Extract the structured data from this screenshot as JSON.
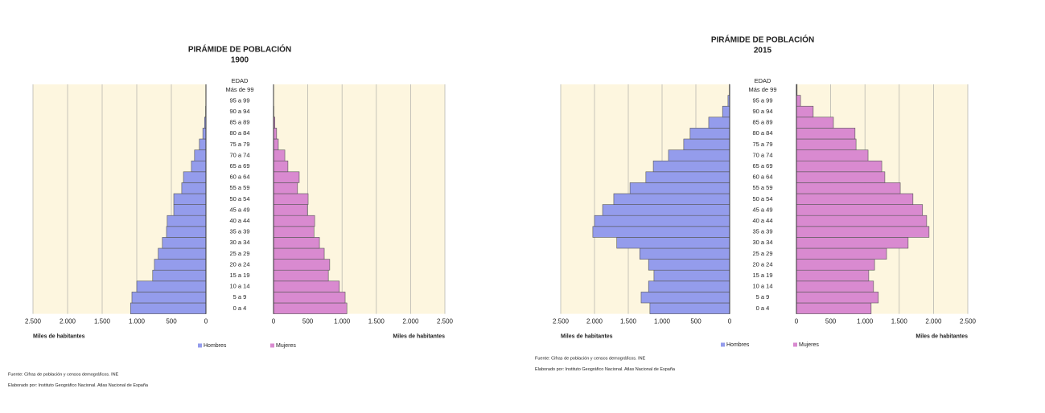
{
  "chart_data": [
    {
      "type": "pyramid",
      "title": "PIRÁMIDE DE POBLACIÓN",
      "subtitle": "1900",
      "age_label": "EDAD",
      "x_label": "Miles de habitantes",
      "categories": [
        "0 a 4",
        "5 a 9",
        "10 a 14",
        "15 a 19",
        "20 a 24",
        "25 a 29",
        "30 a 34",
        "35 a 39",
        "40 a 44",
        "45 a 49",
        "50 a 54",
        "55 a 59",
        "60 a 64",
        "65 a 69",
        "70 a 74",
        "75 a 79",
        "80 a 84",
        "85 a 89",
        "90 a 94",
        "95 a 99",
        "Más de 99"
      ],
      "series": [
        {
          "name": "Hombres",
          "color": "#949cec",
          "values": [
            1090,
            1070,
            1000,
            770,
            745,
            690,
            630,
            570,
            560,
            465,
            465,
            350,
            325,
            210,
            165,
            95,
            45,
            20,
            5,
            1,
            0
          ]
        },
        {
          "name": "Mujeres",
          "color": "#d98ad0",
          "values": [
            1070,
            1045,
            960,
            800,
            820,
            740,
            670,
            590,
            600,
            495,
            505,
            350,
            375,
            210,
            165,
            70,
            45,
            20,
            5,
            2,
            0
          ]
        }
      ],
      "xlim": [
        0,
        2500
      ],
      "xticks": [
        0,
        500,
        {
          "value": 1000,
          "label": "1.000"
        },
        {
          "value": 1500,
          "label": "1.500"
        },
        {
          "value": 2000,
          "label": "2.000"
        },
        {
          "value": 2500,
          "label": "2.500"
        }
      ],
      "grid": true,
      "source": [
        "Fuente: Cifras de población y censos demográficos. INE",
        "Elaborado por: Instituto Geográfico Nacional. Atlas Nacional de España"
      ]
    },
    {
      "type": "pyramid",
      "title": "PIRÁMIDE DE POBLACIÓN",
      "subtitle": "2015",
      "age_label": "EDAD",
      "x_label": "Miles de habitantes",
      "categories": [
        "0 a 4",
        "5 a 9",
        "10 a 14",
        "15 a 19",
        "20 a 24",
        "25 a 29",
        "30 a 34",
        "35 a 39",
        "40 a 44",
        "45 a 49",
        "50 a 54",
        "55 a 59",
        "60 a 64",
        "65 a 69",
        "70 a 74",
        "75 a 79",
        "80 a 84",
        "85 a 89",
        "90 a 94",
        "95 a 99",
        "Más de 99"
      ],
      "series": [
        {
          "name": "Hombres",
          "color": "#949cec",
          "values": [
            1180,
            1310,
            1200,
            1120,
            1200,
            1330,
            1670,
            2025,
            2000,
            1880,
            1715,
            1475,
            1240,
            1130,
            905,
            680,
            585,
            310,
            105,
            25,
            5
          ]
        },
        {
          "name": "Mujeres",
          "color": "#d98ad0",
          "values": [
            1090,
            1195,
            1125,
            1055,
            1140,
            1315,
            1630,
            1935,
            1900,
            1840,
            1700,
            1515,
            1290,
            1245,
            1045,
            870,
            855,
            540,
            245,
            60,
            10
          ]
        }
      ],
      "xlim": [
        0,
        2500
      ],
      "xticks": [
        0,
        500,
        {
          "value": 1000,
          "label": "1.000"
        },
        {
          "value": 1500,
          "label": "1.500"
        },
        {
          "value": 2000,
          "label": "2.000"
        },
        {
          "value": 2500,
          "label": "2.500"
        }
      ],
      "grid": true,
      "source": [
        "Fuente: Cifras de población y censos demográficos. INE",
        "Elaborado por: Instituto Geográfico Nacional. Atlas Nacional de España"
      ]
    }
  ]
}
